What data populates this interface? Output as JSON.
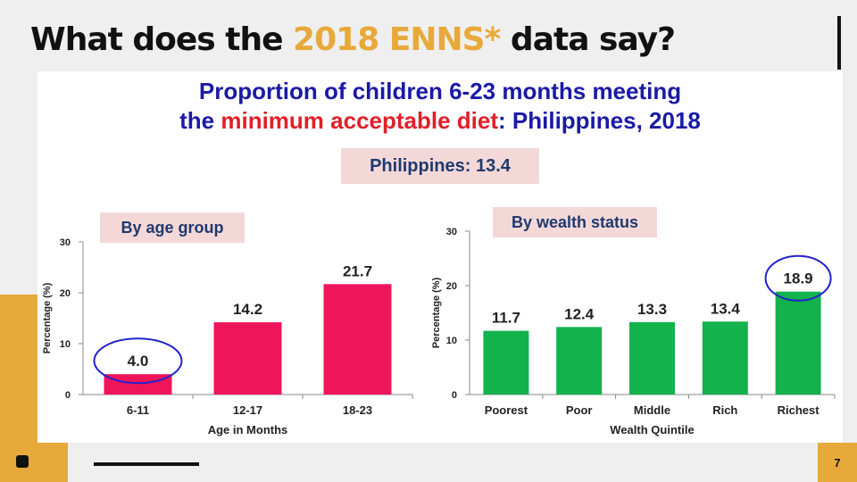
{
  "slide": {
    "title_before": "What does the ",
    "title_highlight": "2018 ENNS*",
    "title_after": " data say?",
    "page_number": "7",
    "accent_color": "#e7a93a"
  },
  "panel": {
    "title_line1": "Proportion of children 6-23 months meeting",
    "title_line2_pre": "the ",
    "title_line2_red": "minimum acceptable diet",
    "title_line2_post": ": Philippines, 2018",
    "national_label": "Philippines: 13.4"
  },
  "chart_data": [
    {
      "type": "bar",
      "group_label": "By age group",
      "categories": [
        "6-11",
        "12-17",
        "18-23"
      ],
      "values": [
        4.0,
        14.2,
        21.7
      ],
      "data_labels": [
        "4.0",
        "14.2",
        "21.7"
      ],
      "xlabel": "Age in Months",
      "ylabel": "Percentage (%)",
      "ylim": [
        0,
        30
      ],
      "yticks": [
        0,
        10,
        20,
        30
      ],
      "color": "#f0145a",
      "highlighted": [
        "6-11"
      ],
      "grid": false
    },
    {
      "type": "bar",
      "group_label": "By wealth status",
      "categories": [
        "Poorest",
        "Poor",
        "Middle",
        "Rich",
        "Richest"
      ],
      "values": [
        11.7,
        12.4,
        13.3,
        13.4,
        18.9
      ],
      "data_labels": [
        "11.7",
        "12.4",
        "13.3",
        "13.4",
        "18.9"
      ],
      "xlabel": "Wealth Quintile",
      "ylabel": "Percentage (%)",
      "ylim": [
        0,
        30
      ],
      "yticks": [
        0,
        10,
        20,
        30
      ],
      "color": "#12b24c",
      "highlighted": [
        "Richest"
      ],
      "grid": false
    }
  ]
}
